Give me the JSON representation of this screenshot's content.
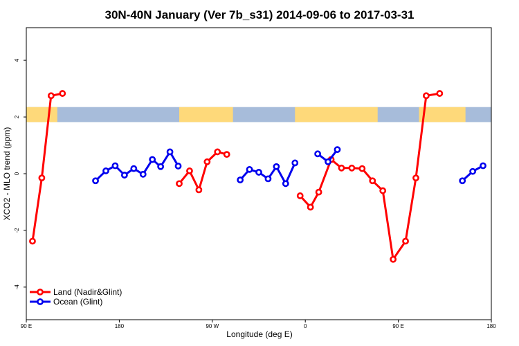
{
  "chart_data": {
    "type": "line",
    "title": "30N-40N January (Ver 7b_s31)   2014-09-06 to 2017-03-31",
    "xlabel": "Longitude (deg E)",
    "ylabel": "XCO2 - MLO trend (ppm)",
    "xlim": [
      90,
      540
    ],
    "ylim": [
      -5.15,
      5.15
    ],
    "x_ticks": [
      {
        "value": 90,
        "label": "90 E"
      },
      {
        "value": 180,
        "label": "180"
      },
      {
        "value": 270,
        "label": "90 W"
      },
      {
        "value": 360,
        "label": "0"
      },
      {
        "value": 450,
        "label": "90 E"
      },
      {
        "value": 540,
        "label": "180"
      }
    ],
    "y_ticks": [
      {
        "value": -4,
        "label": "-4"
      },
      {
        "value": -2,
        "label": "-2"
      },
      {
        "value": 0,
        "label": "0"
      },
      {
        "value": 2,
        "label": "2"
      },
      {
        "value": 4,
        "label": "4"
      }
    ],
    "grid": false,
    "legend_position": "bottom-left",
    "land_mask_band": {
      "y_range": [
        1.82,
        2.35
      ],
      "ocean_color": "#a7bcda",
      "land_color": "#fed97a",
      "land_x_ranges": [
        [
          90,
          120
        ],
        [
          238,
          290
        ],
        [
          350,
          430
        ],
        [
          470,
          515
        ]
      ]
    },
    "series": [
      {
        "name": "Land (Nadir&Glint)",
        "color": "#ff0000",
        "segments": [
          {
            "x": [
              96,
              105,
              114,
              125
            ],
            "y": [
              -2.38,
              -0.15,
              2.75,
              2.83
            ]
          },
          {
            "x": [
              238,
              248,
              257,
              265,
              275,
              284
            ],
            "y": [
              -0.35,
              0.1,
              -0.57,
              0.42,
              0.77,
              0.68
            ]
          },
          {
            "x": [
              355,
              365,
              373,
              385,
              395,
              405,
              415,
              425,
              435,
              445,
              457,
              467,
              477,
              490
            ],
            "y": [
              -0.78,
              -1.18,
              -0.65,
              0.5,
              0.2,
              0.2,
              0.18,
              -0.25,
              -0.6,
              -3.02,
              -2.38,
              -0.15,
              2.75,
              2.83
            ]
          }
        ]
      },
      {
        "name": "Ocean (Glint)",
        "color": "#0000ee",
        "segments": [
          {
            "x": [
              157,
              167,
              176,
              185,
              194,
              203,
              212,
              220,
              229,
              237
            ],
            "y": [
              -0.25,
              0.1,
              0.28,
              -0.05,
              0.18,
              -0.02,
              0.5,
              0.25,
              0.77,
              0.27
            ]
          },
          {
            "x": [
              297,
              306,
              315,
              324,
              332,
              341,
              350
            ],
            "y": [
              -0.22,
              0.15,
              0.05,
              -0.18,
              0.25,
              -0.35,
              0.38
            ]
          },
          {
            "x": [
              372,
              382,
              391
            ],
            "y": [
              0.7,
              0.42,
              0.85
            ]
          },
          {
            "x": [
              512,
              522,
              532
            ],
            "y": [
              -0.25,
              0.08,
              0.28
            ]
          }
        ]
      }
    ]
  }
}
